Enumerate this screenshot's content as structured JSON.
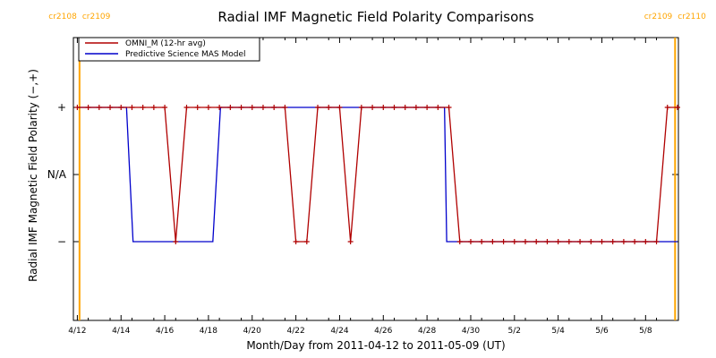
{
  "chart_data": {
    "type": "line",
    "title": "Radial IMF Magnetic Field Polarity Comparisons",
    "xlabel": "Month/Day from 2011-04-12 to 2011-05-09 (UT)",
    "ylabel": "Radial IMF Magnetic Field Polarity (−,+)",
    "x_range_days_from_start": [
      0,
      27.5
    ],
    "x_ticks": [
      {
        "day": 0,
        "label": "4/12"
      },
      {
        "day": 2,
        "label": "4/14"
      },
      {
        "day": 4,
        "label": "4/16"
      },
      {
        "day": 6,
        "label": "4/18"
      },
      {
        "day": 8,
        "label": "4/20"
      },
      {
        "day": 10,
        "label": "4/22"
      },
      {
        "day": 12,
        "label": "4/24"
      },
      {
        "day": 14,
        "label": "4/26"
      },
      {
        "day": 16,
        "label": "4/28"
      },
      {
        "day": 18,
        "label": "4/30"
      },
      {
        "day": 20,
        "label": "5/2"
      },
      {
        "day": 22,
        "label": "5/4"
      },
      {
        "day": 24,
        "label": "5/6"
      },
      {
        "day": 26,
        "label": "5/8"
      }
    ],
    "y_range": [
      -2,
      2
    ],
    "y_ticks": [
      {
        "value": 1,
        "label": "+"
      },
      {
        "value": 0,
        "label": "N/A"
      },
      {
        "value": -1,
        "label": "−"
      }
    ],
    "carrington_markers": [
      {
        "day": 0.1,
        "labels": [
          "cr2108",
          "cr2109"
        ],
        "color": "#FFA500"
      },
      {
        "day": 27.35,
        "labels": [
          "cr2109",
          "cr2110"
        ],
        "color": "#FFA500"
      }
    ],
    "legend_position": "top-left",
    "series": [
      {
        "name": "OMNI_M (12-hr avg)",
        "color": "#B00000",
        "markers": true,
        "points": [
          [
            0,
            1
          ],
          [
            0.5,
            1
          ],
          [
            1,
            1
          ],
          [
            1.5,
            1
          ],
          [
            2,
            1
          ],
          [
            2.5,
            1
          ],
          [
            3,
            1
          ],
          [
            3.5,
            1
          ],
          [
            4,
            1
          ],
          [
            4.5,
            -1
          ],
          [
            5,
            1
          ],
          [
            5.5,
            1
          ],
          [
            6,
            1
          ],
          [
            6.5,
            1
          ],
          [
            7,
            1
          ],
          [
            7.5,
            1
          ],
          [
            8,
            1
          ],
          [
            8.5,
            1
          ],
          [
            9,
            1
          ],
          [
            9.5,
            1
          ],
          [
            10,
            -1
          ],
          [
            10.5,
            -1
          ],
          [
            11,
            1
          ],
          [
            11.5,
            1
          ],
          [
            12,
            1
          ],
          [
            12.5,
            -1
          ],
          [
            13,
            1
          ],
          [
            13.5,
            1
          ],
          [
            14,
            1
          ],
          [
            14.5,
            1
          ],
          [
            15,
            1
          ],
          [
            15.5,
            1
          ],
          [
            16,
            1
          ],
          [
            16.5,
            1
          ],
          [
            17,
            1
          ],
          [
            17.5,
            -1
          ],
          [
            18,
            -1
          ],
          [
            18.5,
            -1
          ],
          [
            19,
            -1
          ],
          [
            19.5,
            -1
          ],
          [
            20,
            -1
          ],
          [
            20.5,
            -1
          ],
          [
            21,
            -1
          ],
          [
            21.5,
            -1
          ],
          [
            22,
            -1
          ],
          [
            22.5,
            -1
          ],
          [
            23,
            -1
          ],
          [
            23.5,
            -1
          ],
          [
            24,
            -1
          ],
          [
            24.5,
            -1
          ],
          [
            25,
            -1
          ],
          [
            25.5,
            -1
          ],
          [
            26,
            -1
          ],
          [
            26.5,
            -1
          ],
          [
            27,
            1
          ],
          [
            27.5,
            1
          ]
        ]
      },
      {
        "name": "Predictive Science MAS Model",
        "color": "#0000CC",
        "markers": false,
        "points": [
          [
            0,
            1
          ],
          [
            2.25,
            1
          ],
          [
            2.55,
            -1
          ],
          [
            6.2,
            -1
          ],
          [
            6.55,
            1
          ],
          [
            16.8,
            1
          ],
          [
            16.9,
            -1
          ],
          [
            27.5,
            -1
          ]
        ]
      }
    ]
  }
}
